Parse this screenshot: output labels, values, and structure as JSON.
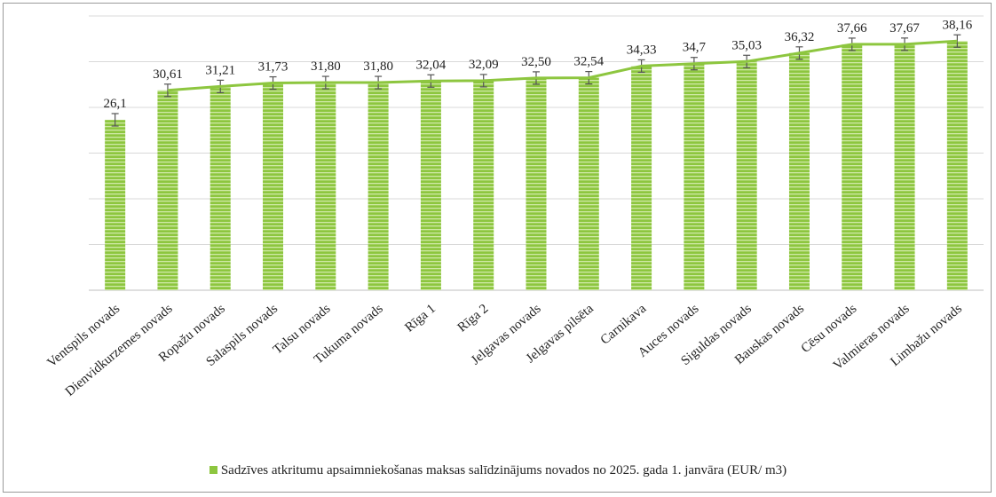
{
  "chart_data": {
    "type": "bar",
    "title": "",
    "xlabel": "",
    "ylabel": "",
    "categories": [
      "Ventspils novads",
      "Dienvidkurzemes novads",
      "Ropažu  novads",
      "Salaspils novads",
      "Talsu novads",
      "Tukuma novads",
      "Rīga 1",
      "Rīga 2",
      "Jelgavas novads",
      "Jelgavas pilsēta",
      "Carnikava",
      "Auces novads",
      "Siguldas novads",
      "Bauskas novads",
      "Cēsu novads",
      "Valmieras novads",
      "Limbažu novads"
    ],
    "values": [
      26.1,
      30.61,
      31.21,
      31.73,
      31.8,
      31.8,
      32.04,
      32.09,
      32.5,
      32.54,
      34.33,
      34.7,
      35.03,
      36.32,
      37.66,
      37.67,
      38.16
    ],
    "value_labels": [
      "26,1",
      "30,61",
      "31,21",
      "31,73",
      "31,80",
      "31,80",
      "32,04",
      "32,09",
      "32,50",
      "32,54",
      "34,33",
      "34,7",
      "35,03",
      "36,32",
      "37,66",
      "37,67",
      "38,16"
    ],
    "series": [
      {
        "name": "Sadzīves atkritumu apsaimniekošanas maksas salīdzinājums novados no 2025. gada 1. janvāra (EUR/ m3)"
      }
    ],
    "ylim": [
      0,
      42
    ],
    "grid": true,
    "error_bars": true,
    "trend_line": true,
    "legend_position": "bottom",
    "colors": {
      "bar": "#8dc63f",
      "bar_stripe": "#c7e59a",
      "line": "#8dc63f",
      "error": "#555555",
      "grid": "#d9d9d9"
    }
  }
}
